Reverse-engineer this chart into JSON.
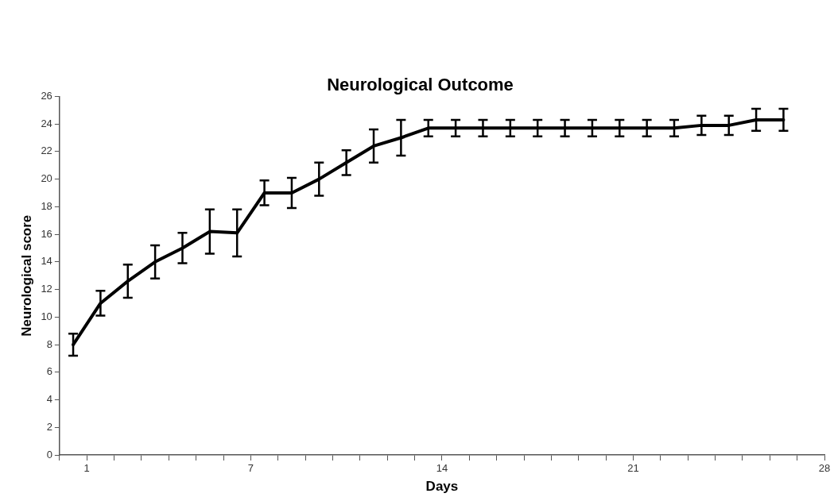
{
  "chart_data": {
    "type": "line",
    "title": "Neurological Outcome",
    "xlabel": "Days",
    "ylabel": "Neurological score",
    "x": [
      0.5,
      1.5,
      2.5,
      3.5,
      4.5,
      5.5,
      6.5,
      7.5,
      8.5,
      9.5,
      10.5,
      11.5,
      12.5,
      13.5,
      14.5,
      15.5,
      16.5,
      17.5,
      18.5,
      19.5,
      20.5,
      21.5,
      22.5,
      23.5,
      24.5,
      25.5,
      26.5
    ],
    "series": [
      {
        "color": "#000000",
        "values": [
          8.0,
          11.0,
          12.6,
          14.0,
          15.0,
          16.2,
          16.1,
          19.0,
          19.0,
          20.0,
          21.2,
          22.4,
          23.0,
          23.7,
          23.7,
          23.7,
          23.7,
          23.7,
          23.7,
          23.7,
          23.7,
          23.7,
          23.7,
          23.9,
          23.9,
          24.3,
          24.3
        ],
        "errors": [
          0.8,
          0.9,
          1.2,
          1.2,
          1.1,
          1.6,
          1.7,
          0.9,
          1.1,
          1.2,
          0.9,
          1.2,
          1.3,
          0.6,
          0.6,
          0.6,
          0.6,
          0.6,
          0.6,
          0.6,
          0.6,
          0.6,
          0.6,
          0.7,
          0.7,
          0.8,
          0.8
        ]
      }
    ],
    "xlim": [
      0,
      28
    ],
    "xticks": [
      {
        "value": 0,
        "label": null
      },
      1,
      {
        "value": 2,
        "label": null
      },
      {
        "value": 3,
        "label": null
      },
      {
        "value": 4,
        "label": null
      },
      {
        "value": 5,
        "label": null
      },
      {
        "value": 6,
        "label": null
      },
      7,
      {
        "value": 8,
        "label": null
      },
      {
        "value": 9,
        "label": null
      },
      {
        "value": 10,
        "label": null
      },
      {
        "value": 11,
        "label": null
      },
      {
        "value": 12,
        "label": null
      },
      {
        "value": 13,
        "label": null
      },
      14,
      {
        "value": 15,
        "label": null
      },
      {
        "value": 16,
        "label": null
      },
      {
        "value": 17,
        "label": null
      },
      {
        "value": 18,
        "label": null
      },
      {
        "value": 19,
        "label": null
      },
      {
        "value": 20,
        "label": null
      },
      21,
      {
        "value": 22,
        "label": null
      },
      {
        "value": 23,
        "label": null
      },
      {
        "value": 24,
        "label": null
      },
      {
        "value": 25,
        "label": null
      },
      {
        "value": 26,
        "label": null
      },
      {
        "value": 27,
        "label": null
      },
      28
    ],
    "ylim": [
      0,
      26
    ],
    "yticks": [
      0,
      2,
      4,
      6,
      8,
      10,
      12,
      14,
      16,
      18,
      20,
      22,
      24,
      26
    ],
    "grid": false,
    "legend": false,
    "marker": "none",
    "line_style": "solid"
  }
}
